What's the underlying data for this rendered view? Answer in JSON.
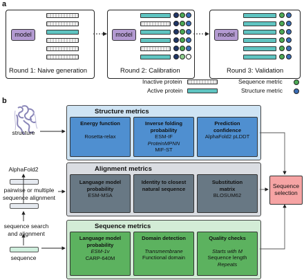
{
  "panel_a": {
    "label": "a",
    "model_label": "model",
    "rounds": [
      {
        "title": "Round 1: Naive generation"
      },
      {
        "title": "Round 2: Calibration"
      },
      {
        "title": "Round 3: Validation"
      }
    ],
    "legend": {
      "inactive": "Inactive protein",
      "active": "Active protein",
      "sequence_metric": "Sequence metric",
      "structure_metric": "Structure metric"
    },
    "colors": {
      "model": "#b39ad1",
      "active": "#5fc4c1",
      "sequence_metric": "#4caa55",
      "structure_metric": "#3a6db5",
      "navy": "#1f3566"
    }
  },
  "panel_b": {
    "label": "b",
    "left": {
      "structure": "structure",
      "alphafold": "AlphaFold2",
      "alignment": "pairwise or multiple sequence alignment",
      "alignment_line1": "pairwise or multiple",
      "alignment_line2": "sequence alignment",
      "search_line1": "sequence search",
      "search_line2": "and alignment",
      "sequence": "sequence"
    },
    "structure_metrics": {
      "title": "Structure metrics",
      "boxes": [
        {
          "header": "Energy function",
          "items": [
            "Rosetta-relax"
          ]
        },
        {
          "header_1": "Inverse folding",
          "header_2": "probability",
          "items": [
            "ESM-IF",
            "ProteinMPNN",
            "MIF-ST"
          ]
        },
        {
          "header_1": "Prediction",
          "header_2": "confidence",
          "items": [
            "AlphaFold2 pLDDT"
          ]
        }
      ]
    },
    "alignment_metrics": {
      "title": "Alignment metrics",
      "boxes": [
        {
          "header_1": "Language model",
          "header_2": "probability",
          "items": [
            "ESM-MSA"
          ]
        },
        {
          "header_1": "Identity to closest",
          "header_2": "natural sequence",
          "items": []
        },
        {
          "header_1": "Substitution",
          "header_2": "matrix",
          "items": [
            "BLOSUM62"
          ]
        }
      ]
    },
    "sequence_metrics": {
      "title": "Sequence metrics",
      "boxes": [
        {
          "header_1": "Language model",
          "header_2": "probability",
          "items": [
            "ESM-1v",
            "CARP-640M"
          ]
        },
        {
          "header": "Domain detection",
          "items": [
            "Transmembrane",
            "Functional domain"
          ]
        },
        {
          "header": "Quality checks",
          "items": [
            "Starts with M",
            "Sequence length",
            "Repeats"
          ]
        }
      ]
    },
    "selection": {
      "line1": "Sequence",
      "line2": "selection"
    }
  }
}
